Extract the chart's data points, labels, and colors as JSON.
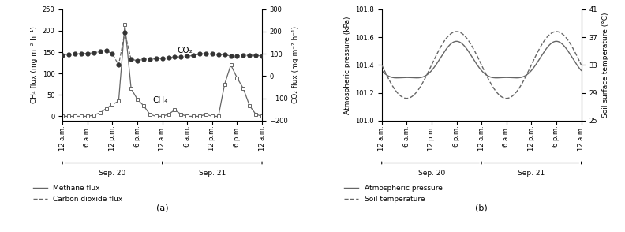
{
  "panel_a": {
    "xlabel_ticks": [
      "12 a.m.",
      "6 a.m.",
      "12 p.m.",
      "6 p.m.",
      "12 a.m.",
      "6 a.m.",
      "12 p.m.",
      "6 p.m.",
      "12 a.m."
    ],
    "date_labels": [
      "Sep. 20",
      "Sep. 21"
    ],
    "ylabel_left": "CH₄ flux (mg m⁻² h⁻¹)",
    "ylabel_right": "CO₂ flux (mg m⁻² h⁻¹)",
    "ylim_left": [
      -10,
      250
    ],
    "ylim_right": [
      -200,
      300
    ],
    "yticks_left": [
      0,
      50,
      100,
      150,
      200,
      250
    ],
    "yticks_right": [
      -200,
      -100,
      0,
      100,
      200,
      300
    ],
    "legend": [
      "Methane flux",
      "Carbon dioxide flux"
    ],
    "ch4_annotation": "CH₄",
    "co2_annotation": "CO₂",
    "panel_label": "(a)",
    "ch4_x": [
      0.0,
      0.25,
      0.5,
      0.75,
      1.0,
      1.25,
      1.5,
      1.75,
      2.0,
      2.25,
      2.5,
      2.75,
      3.0,
      3.25,
      3.5,
      3.75,
      4.0,
      4.25,
      4.5,
      4.75,
      5.0,
      5.25,
      5.5,
      5.75,
      6.0,
      6.25,
      6.5,
      6.75,
      7.0,
      7.25,
      7.5,
      7.75,
      8.0
    ],
    "ch4_y": [
      0,
      0,
      0,
      0,
      0,
      3,
      8,
      18,
      28,
      35,
      215,
      65,
      40,
      25,
      5,
      0,
      0,
      5,
      15,
      5,
      0,
      0,
      0,
      5,
      0,
      0,
      75,
      120,
      90,
      65,
      25,
      5,
      0
    ],
    "co2_x": [
      0.0,
      0.25,
      0.5,
      0.75,
      1.0,
      1.25,
      1.5,
      1.75,
      2.0,
      2.25,
      2.5,
      2.75,
      3.0,
      3.25,
      3.5,
      3.75,
      4.0,
      4.25,
      4.5,
      4.75,
      5.0,
      5.25,
      5.5,
      5.75,
      6.0,
      6.25,
      6.5,
      6.75,
      7.0,
      7.25,
      7.5,
      7.75,
      8.0
    ],
    "co2_y": [
      95,
      98,
      100,
      100,
      102,
      105,
      110,
      115,
      100,
      50,
      195,
      75,
      70,
      75,
      75,
      78,
      80,
      82,
      85,
      88,
      90,
      92,
      100,
      100,
      100,
      98,
      96,
      90,
      90,
      92,
      93,
      93,
      90
    ]
  },
  "panel_b": {
    "xlabel_ticks": [
      "12 a.m.",
      "6 a.m.",
      "12 p.m.",
      "6 p.m.",
      "12 a.m.",
      "6 a.m.",
      "12 p.m.",
      "6 p.m.",
      "12 a.m."
    ],
    "date_labels": [
      "Sep. 20",
      "Sep. 21"
    ],
    "ylabel_left": "Atmospheric pressure (kPa)",
    "ylabel_right": "Soil surface temperature (°C)",
    "ylim_left": [
      101.0,
      101.8
    ],
    "ylim_right": [
      25,
      41
    ],
    "yticks_left": [
      101.0,
      101.2,
      101.4,
      101.6,
      101.8
    ],
    "yticks_right": [
      25,
      29,
      33,
      37,
      41
    ],
    "legend": [
      "Atmospheric pressure",
      "Soil temperature"
    ],
    "panel_label": "(b)"
  },
  "color_gray": "#666666",
  "color_dark": "#333333"
}
